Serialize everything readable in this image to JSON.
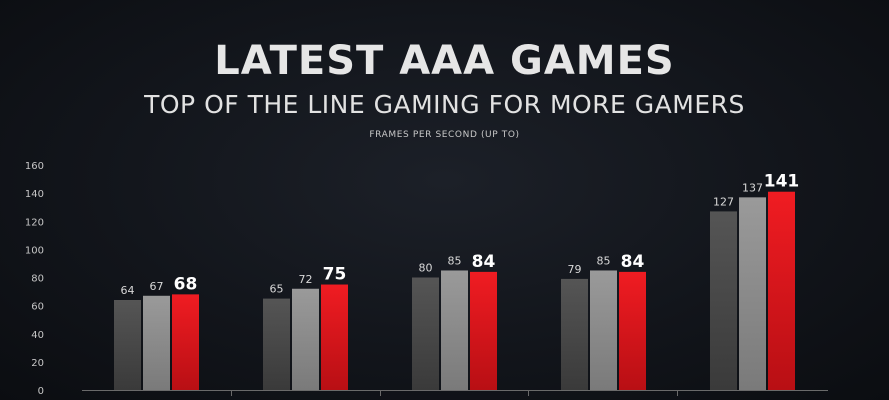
{
  "header": {
    "title": "LATEST AAA GAMES",
    "subtitle": "TOP OF THE LINE GAMING FOR MORE GAMERS"
  },
  "chart_data": {
    "type": "bar",
    "ylabel": "FRAMES PER SECOND (UP TO)",
    "ylim": [
      0,
      160
    ],
    "yticks": [
      0,
      20,
      40,
      60,
      80,
      100,
      120,
      140,
      160
    ],
    "grid": false,
    "categories": [
      "",
      "",
      "",
      "",
      ""
    ],
    "series": [
      {
        "color": "#4a4a4a",
        "values": [
          64,
          65,
          80,
          79,
          127
        ]
      },
      {
        "color": "#8c8c8c",
        "values": [
          67,
          72,
          85,
          85,
          137
        ]
      },
      {
        "color": "#e3151b",
        "values": [
          68,
          75,
          84,
          84,
          141
        ],
        "emphasis": true
      }
    ]
  }
}
